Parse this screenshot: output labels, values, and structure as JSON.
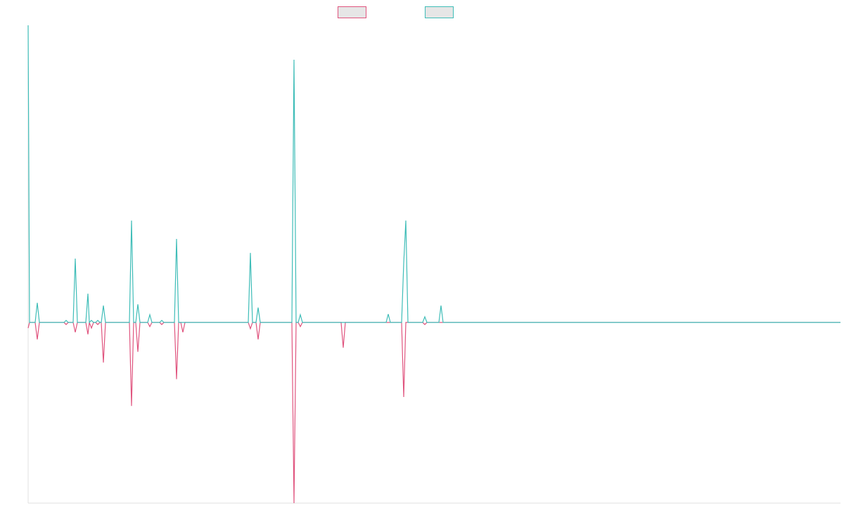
{
  "chart_data": {
    "type": "line",
    "x": [
      0,
      2,
      10,
      13,
      16,
      51,
      54,
      57,
      64,
      67,
      70,
      82,
      85,
      87,
      90,
      93,
      96,
      99,
      102,
      104,
      107,
      110,
      144,
      147,
      150,
      153,
      156,
      159,
      170,
      173,
      176,
      187,
      190,
      193,
      208,
      211,
      214,
      217,
      220,
      223,
      313,
      316,
      319,
      324,
      327,
      330,
      375,
      378,
      381,
      384,
      387,
      390,
      445,
      448,
      451,
      509,
      512,
      515,
      531,
      534,
      537,
      540,
      561,
      564,
      567,
      584,
      587,
      590,
      1155
    ],
    "xlim": [
      0,
      1155
    ],
    "ylim": [
      -60.8,
      100
    ],
    "series": [
      {
        "color": "#e0557f",
        "values": [
          -1.9,
          0,
          0,
          -5.7,
          0,
          0,
          -0.7,
          0,
          0,
          -3.3,
          0,
          0,
          -4,
          0,
          -1.9,
          0,
          0,
          -0.7,
          0,
          0,
          -13.5,
          0,
          0,
          -28.1,
          0,
          0,
          -9.9,
          0,
          0,
          -1.4,
          0,
          0,
          -0.7,
          0,
          0,
          -19.1,
          0,
          0,
          -3.3,
          0,
          0,
          -2.1,
          0,
          0,
          -5.7,
          0,
          0,
          -60.8,
          0,
          0,
          -1.4,
          0,
          0,
          -8.5,
          0,
          0,
          0,
          0,
          0,
          -25.1,
          0,
          0,
          0,
          -0.7,
          0,
          0,
          0,
          0,
          0
        ]
      },
      {
        "color": "#3fbdb8",
        "values": [
          100,
          0,
          0,
          6.6,
          0,
          0,
          0.7,
          0,
          0,
          21.5,
          0,
          0,
          9.7,
          0,
          0.7,
          0,
          0,
          0.7,
          0,
          0,
          5.7,
          0,
          0,
          34.3,
          0,
          0,
          6.1,
          0,
          0,
          2.6,
          0,
          0,
          0.7,
          0,
          0,
          28.1,
          0,
          0,
          0,
          0,
          0,
          23.4,
          0,
          0,
          5.0,
          0,
          0,
          88.4,
          0,
          0,
          2.6,
          0,
          0,
          0,
          0,
          0,
          2.8,
          0,
          0,
          19.9,
          34.3,
          0,
          0,
          1.9,
          0,
          0,
          5.7,
          0,
          0
        ]
      }
    ]
  }
}
